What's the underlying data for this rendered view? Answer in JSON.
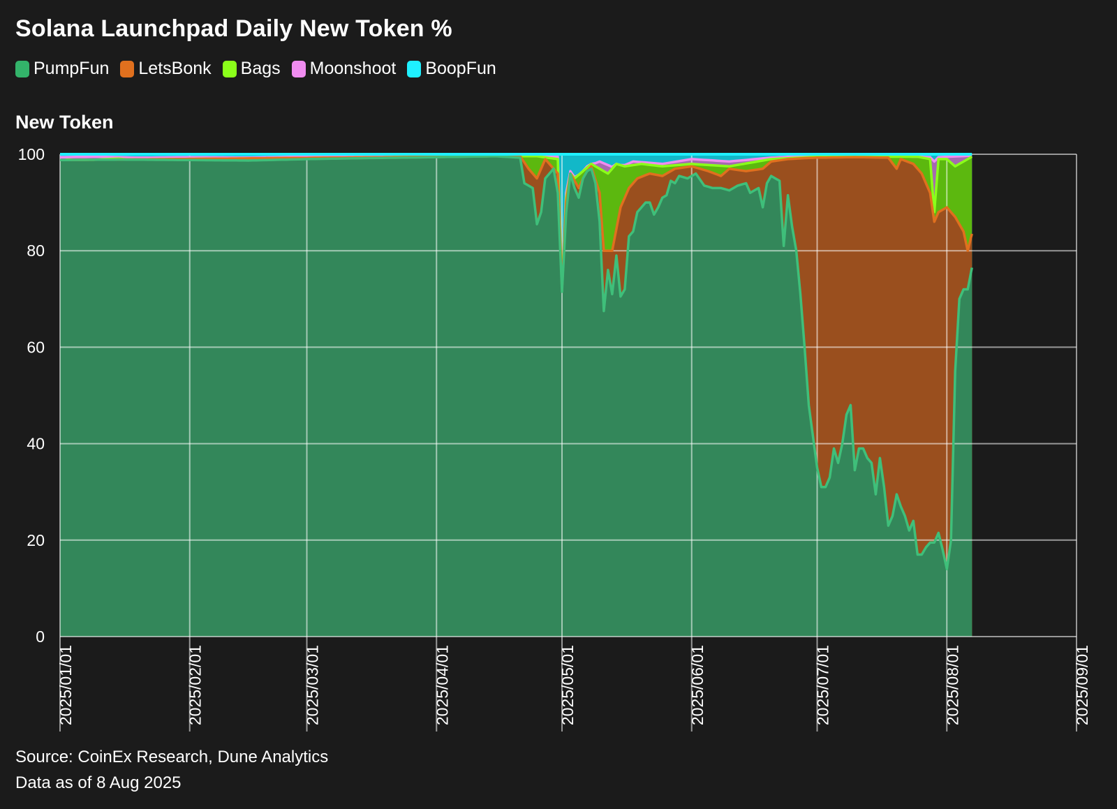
{
  "title": "Solana Launchpad Daily New Token %",
  "y_title": "New Token",
  "source_line1": "Source: CoinEx Research, Dune Analytics",
  "source_line2": "Data as of 8 Aug 2025",
  "colors": {
    "background": "#1b1b1b",
    "PumpFun_fill": "#33875a",
    "PumpFun_line": "#3fbf7a",
    "LetsBonk_fill": "#9a4f1e",
    "LetsBonk_line": "#e0701e",
    "Bags_fill": "#5cb80f",
    "Bags_line": "#8bff1a",
    "Moonshoot_fill": "#a56ab0",
    "Moonshoot_line": "#f08cf0",
    "BoopFun_fill": "#12b8c8",
    "BoopFun_line": "#1ff0ff",
    "grid": "#ffffff"
  },
  "chart_data": {
    "type": "area",
    "stacked": true,
    "title": "Solana Launchpad Daily New Token %",
    "ylabel": "New Token",
    "ylim": [
      0,
      100
    ],
    "yticks": [
      0,
      20,
      40,
      60,
      80,
      100
    ],
    "xlim": [
      "2025/01/01",
      "2025/09/01"
    ],
    "xticks": [
      "2025/01/01",
      "2025/02/01",
      "2025/03/01",
      "2025/04/01",
      "2025/05/01",
      "2025/06/01",
      "2025/07/01",
      "2025/08/01",
      "2025/09/01"
    ],
    "legend_position": "top-left",
    "grid": true,
    "legend": [
      "PumpFun",
      "LetsBonk",
      "Bags",
      "Moonshoot",
      "BoopFun"
    ],
    "note": "cumulative stacked top boundary per series",
    "series": [
      {
        "name": "PumpFun",
        "points": [
          [
            "2025/01/01",
            98.8
          ],
          [
            "2025/01/15",
            98.9
          ],
          [
            "2025/02/01",
            98.8
          ],
          [
            "2025/02/15",
            98.7
          ],
          [
            "2025/03/01",
            99.0
          ],
          [
            "2025/03/15",
            99.2
          ],
          [
            "2025/04/01",
            99.4
          ],
          [
            "2025/04/15",
            99.6
          ],
          [
            "2025/04/21",
            99.3
          ],
          [
            "2025/04/22",
            94.0
          ],
          [
            "2025/04/24",
            93.0
          ],
          [
            "2025/04/25",
            85.5
          ],
          [
            "2025/04/26",
            88.0
          ],
          [
            "2025/04/27",
            95.0
          ],
          [
            "2025/04/29",
            97.0
          ],
          [
            "2025/04/30",
            92.0
          ],
          [
            "2025/05/01",
            71.5
          ],
          [
            "2025/05/02",
            88.0
          ],
          [
            "2025/05/03",
            96.0
          ],
          [
            "2025/05/04",
            93.0
          ],
          [
            "2025/05/05",
            91.0
          ],
          [
            "2025/05/06",
            95.0
          ],
          [
            "2025/05/07",
            96.5
          ],
          [
            "2025/05/08",
            97.0
          ],
          [
            "2025/05/09",
            94.0
          ],
          [
            "2025/05/10",
            86.0
          ],
          [
            "2025/05/11",
            67.5
          ],
          [
            "2025/05/12",
            76.0
          ],
          [
            "2025/05/13",
            71.0
          ],
          [
            "2025/05/14",
            79.0
          ],
          [
            "2025/05/15",
            70.5
          ],
          [
            "2025/05/16",
            72.0
          ],
          [
            "2025/05/17",
            83.0
          ],
          [
            "2025/05/18",
            84.0
          ],
          [
            "2025/05/19",
            88.0
          ],
          [
            "2025/05/20",
            89.0
          ],
          [
            "2025/05/21",
            90.0
          ],
          [
            "2025/05/22",
            90.0
          ],
          [
            "2025/05/23",
            87.5
          ],
          [
            "2025/05/24",
            89.0
          ],
          [
            "2025/05/25",
            91.0
          ],
          [
            "2025/05/26",
            91.5
          ],
          [
            "2025/05/27",
            94.5
          ],
          [
            "2025/05/28",
            94.0
          ],
          [
            "2025/05/29",
            95.5
          ],
          [
            "2025/05/31",
            95.0
          ],
          [
            "2025/06/02",
            96.0
          ],
          [
            "2025/06/04",
            93.5
          ],
          [
            "2025/06/06",
            93.0
          ],
          [
            "2025/06/08",
            93.0
          ],
          [
            "2025/06/10",
            92.5
          ],
          [
            "2025/06/12",
            93.5
          ],
          [
            "2025/06/14",
            94.0
          ],
          [
            "2025/06/15",
            92.0
          ],
          [
            "2025/06/17",
            93.0
          ],
          [
            "2025/06/18",
            89.0
          ],
          [
            "2025/06/19",
            94.0
          ],
          [
            "2025/06/20",
            95.5
          ],
          [
            "2025/06/22",
            94.5
          ],
          [
            "2025/06/23",
            81.0
          ],
          [
            "2025/06/24",
            91.5
          ],
          [
            "2025/06/25",
            85.0
          ],
          [
            "2025/06/26",
            80.0
          ],
          [
            "2025/06/27",
            71.0
          ],
          [
            "2025/06/28",
            60.0
          ],
          [
            "2025/06/29",
            48.0
          ],
          [
            "2025/07/01",
            35.0
          ],
          [
            "2025/07/02",
            31.0
          ],
          [
            "2025/07/03",
            31.0
          ],
          [
            "2025/07/04",
            33.0
          ],
          [
            "2025/07/05",
            39.0
          ],
          [
            "2025/07/06",
            36.0
          ],
          [
            "2025/07/07",
            40.0
          ],
          [
            "2025/07/08",
            46.0
          ],
          [
            "2025/07/09",
            48.0
          ],
          [
            "2025/07/10",
            34.5
          ],
          [
            "2025/07/11",
            39.0
          ],
          [
            "2025/07/12",
            39.0
          ],
          [
            "2025/07/13",
            37.0
          ],
          [
            "2025/07/14",
            36.0
          ],
          [
            "2025/07/15",
            29.5
          ],
          [
            "2025/07/16",
            37.0
          ],
          [
            "2025/07/17",
            31.0
          ],
          [
            "2025/07/18",
            23.0
          ],
          [
            "2025/07/19",
            25.0
          ],
          [
            "2025/07/20",
            29.5
          ],
          [
            "2025/07/21",
            27.0
          ],
          [
            "2025/07/22",
            25.0
          ],
          [
            "2025/07/23",
            22.0
          ],
          [
            "2025/07/24",
            24.0
          ],
          [
            "2025/07/25",
            17.0
          ],
          [
            "2025/07/26",
            17.0
          ],
          [
            "2025/07/27",
            18.5
          ],
          [
            "2025/07/28",
            19.5
          ],
          [
            "2025/07/29",
            19.5
          ],
          [
            "2025/07/30",
            21.5
          ],
          [
            "2025/07/31",
            18.0
          ],
          [
            "2025/08/01",
            14.0
          ],
          [
            "2025/08/02",
            20.0
          ],
          [
            "2025/08/03",
            55.0
          ],
          [
            "2025/08/04",
            70.0
          ],
          [
            "2025/08/05",
            72.0
          ],
          [
            "2025/08/06",
            72.0
          ],
          [
            "2025/08/07",
            76.5
          ]
        ]
      },
      {
        "name": "LetsBonk",
        "points": [
          [
            "2025/01/01",
            98.8
          ],
          [
            "2025/04/15",
            99.6
          ],
          [
            "2025/04/20",
            99.6
          ],
          [
            "2025/04/21",
            99.6
          ],
          [
            "2025/04/23",
            97.0
          ],
          [
            "2025/04/25",
            95.0
          ],
          [
            "2025/04/27",
            99.0
          ],
          [
            "2025/04/30",
            96.0
          ],
          [
            "2025/05/01",
            72.0
          ],
          [
            "2025/05/02",
            90.0
          ],
          [
            "2025/05/03",
            96.0
          ],
          [
            "2025/05/05",
            93.0
          ],
          [
            "2025/05/08",
            97.5
          ],
          [
            "2025/05/10",
            92.0
          ],
          [
            "2025/05/11",
            80.0
          ],
          [
            "2025/05/13",
            80.0
          ],
          [
            "2025/05/15",
            89.0
          ],
          [
            "2025/05/17",
            93.0
          ],
          [
            "2025/05/19",
            95.0
          ],
          [
            "2025/05/22",
            96.0
          ],
          [
            "2025/05/25",
            95.5
          ],
          [
            "2025/05/28",
            97.0
          ],
          [
            "2025/06/01",
            97.5
          ],
          [
            "2025/06/05",
            96.5
          ],
          [
            "2025/06/08",
            95.5
          ],
          [
            "2025/06/10",
            97.0
          ],
          [
            "2025/06/14",
            96.5
          ],
          [
            "2025/06/18",
            97.0
          ],
          [
            "2025/06/20",
            98.5
          ],
          [
            "2025/06/24",
            99.0
          ],
          [
            "2025/06/28",
            99.2
          ],
          [
            "2025/07/01",
            99.3
          ],
          [
            "2025/07/10",
            99.4
          ],
          [
            "2025/07/18",
            99.3
          ],
          [
            "2025/07/20",
            97.0
          ],
          [
            "2025/07/21",
            99.0
          ],
          [
            "2025/07/24",
            98.0
          ],
          [
            "2025/07/26",
            96.0
          ],
          [
            "2025/07/28",
            92.0
          ],
          [
            "2025/07/29",
            86.0
          ],
          [
            "2025/07/30",
            88.0
          ],
          [
            "2025/08/01",
            89.0
          ],
          [
            "2025/08/03",
            87.0
          ],
          [
            "2025/08/05",
            84.0
          ],
          [
            "2025/08/06",
            80.0
          ],
          [
            "2025/08/07",
            83.5
          ]
        ]
      },
      {
        "name": "Bags",
        "points": [
          [
            "2025/01/01",
            98.6
          ],
          [
            "2025/01/03",
            98.9
          ],
          [
            "2025/01/06",
            98.6
          ],
          [
            "2025/01/10",
            98.9
          ],
          [
            "2025/01/15",
            99.1
          ],
          [
            "2025/01/20",
            98.6
          ],
          [
            "2025/01/25",
            98.9
          ],
          [
            "2025/02/01",
            98.7
          ],
          [
            "2025/02/10",
            98.9
          ],
          [
            "2025/02/15",
            98.5
          ],
          [
            "2025/02/20",
            98.8
          ],
          [
            "2025/03/01",
            99.1
          ],
          [
            "2025/03/10",
            99.2
          ],
          [
            "2025/03/20",
            99.4
          ],
          [
            "2025/04/01",
            99.5
          ],
          [
            "2025/04/15",
            99.6
          ],
          [
            "2025/04/21",
            99.6
          ],
          [
            "2025/04/25",
            99.6
          ],
          [
            "2025/04/30",
            99.0
          ],
          [
            "2025/05/01",
            72.5
          ],
          [
            "2025/05/02",
            91.0
          ],
          [
            "2025/05/04",
            95.0
          ],
          [
            "2025/05/08",
            98.0
          ],
          [
            "2025/05/12",
            96.0
          ],
          [
            "2025/05/14",
            98.0
          ],
          [
            "2025/05/16",
            97.5
          ],
          [
            "2025/05/20",
            98.0
          ],
          [
            "2025/05/25",
            97.5
          ],
          [
            "2025/06/01",
            98.0
          ],
          [
            "2025/06/10",
            97.5
          ],
          [
            "2025/06/20",
            99.0
          ],
          [
            "2025/07/01",
            99.5
          ],
          [
            "2025/07/15",
            99.5
          ],
          [
            "2025/07/25",
            99.5
          ],
          [
            "2025/07/28",
            99.0
          ],
          [
            "2025/07/29",
            88.0
          ],
          [
            "2025/07/30",
            99.0
          ],
          [
            "2025/08/01",
            99.0
          ],
          [
            "2025/08/03",
            97.5
          ],
          [
            "2025/08/05",
            98.5
          ],
          [
            "2025/08/07",
            99.5
          ]
        ]
      },
      {
        "name": "Moonshoot",
        "points": [
          [
            "2025/01/01",
            99.4
          ],
          [
            "2025/01/10",
            99.5
          ],
          [
            "2025/01/20",
            99.3
          ],
          [
            "2025/02/01",
            99.4
          ],
          [
            "2025/02/15",
            99.3
          ],
          [
            "2025/03/01",
            99.5
          ],
          [
            "2025/03/15",
            99.7
          ],
          [
            "2025/04/01",
            99.8
          ],
          [
            "2025/04/20",
            99.8
          ],
          [
            "2025/04/30",
            99.5
          ],
          [
            "2025/05/01",
            73.5
          ],
          [
            "2025/05/02",
            92.0
          ],
          [
            "2025/05/03",
            96.5
          ],
          [
            "2025/05/05",
            94.0
          ],
          [
            "2025/05/07",
            97.5
          ],
          [
            "2025/05/10",
            98.5
          ],
          [
            "2025/05/14",
            97.0
          ],
          [
            "2025/05/18",
            98.5
          ],
          [
            "2025/05/25",
            98.0
          ],
          [
            "2025/06/01",
            99.0
          ],
          [
            "2025/06/10",
            98.5
          ],
          [
            "2025/06/20",
            99.3
          ],
          [
            "2025/07/01",
            99.7
          ],
          [
            "2025/07/20",
            99.6
          ],
          [
            "2025/07/28",
            99.4
          ],
          [
            "2025/07/29",
            98.5
          ],
          [
            "2025/07/30",
            99.4
          ],
          [
            "2025/08/07",
            99.7
          ]
        ]
      },
      {
        "name": "BoopFun",
        "points": [
          [
            "2025/01/01",
            100
          ],
          [
            "2025/04/30",
            100
          ],
          [
            "2025/05/01",
            100
          ],
          [
            "2025/05/07",
            100
          ],
          [
            "2025/06/01",
            100
          ],
          [
            "2025/07/01",
            100
          ],
          [
            "2025/08/07",
            100
          ]
        ]
      }
    ]
  }
}
